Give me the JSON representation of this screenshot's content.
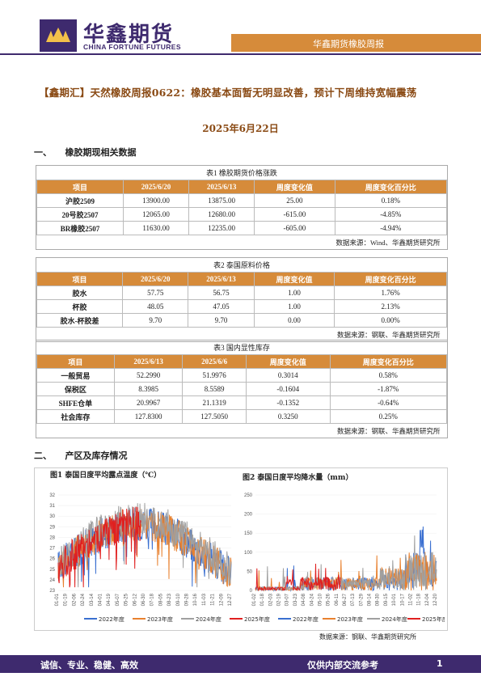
{
  "header": {
    "company_cn": "华鑫期货",
    "company_en": "CHINA FORTUNE FUTURES",
    "report_name": "华鑫期货橡胶周报"
  },
  "title": "【鑫期汇】天然橡胶周报0622：橡胶基本面暂无明显改善，预计下周维持宽幅震荡",
  "date": "2025年6月22日",
  "section1": "一、　　橡胶期现相关数据",
  "section2": "二、　　产区及库存情况",
  "table1": {
    "caption": "表1 橡胶期货价格涨跌",
    "headers": [
      "项目",
      "2025/6/20",
      "2025/6/13",
      "周度变化值",
      "周度变化百分比"
    ],
    "rows": [
      [
        "沪胶2509",
        "13900.00",
        "13875.00",
        "25.00",
        "0.18%"
      ],
      [
        "20号胶2507",
        "12065.00",
        "12680.00",
        "-615.00",
        "-4.85%"
      ],
      [
        "BR橡胶2507",
        "11630.00",
        "12235.00",
        "-605.00",
        "-4.94%"
      ]
    ],
    "source": "数据来源：Wind、华鑫期货研究所"
  },
  "table2": {
    "caption": "表2 泰国原料价格",
    "headers": [
      "项目",
      "2025/6/20",
      "2025/6/13",
      "周度变化值",
      "周度变化百分比"
    ],
    "rows": [
      [
        "胶水",
        "57.75",
        "56.75",
        "1.00",
        "1.76%"
      ],
      [
        "杯胶",
        "48.05",
        "47.05",
        "1.00",
        "2.13%"
      ],
      [
        "胶水-杯胶差",
        "9.70",
        "9.70",
        "0.00",
        "0.00%"
      ]
    ],
    "source": "数据来源：钢联、华鑫期货研究所"
  },
  "table3": {
    "caption": "表3 国内显性库存",
    "headers": [
      "项目",
      "2025/6/13",
      "2025/6/6",
      "周度变化值",
      "周度变化百分比"
    ],
    "rows": [
      [
        "一般贸易",
        "52.2990",
        "51.9976",
        "0.3014",
        "0.58%"
      ],
      [
        "保税区",
        "8.3985",
        "8.5589",
        "-0.1604",
        "-1.87%"
      ],
      [
        "SHFE仓单",
        "20.9967",
        "21.1319",
        "-0.1352",
        "-0.64%"
      ],
      [
        "社会库存",
        "127.8300",
        "127.5050",
        "0.3250",
        "0.25%"
      ]
    ],
    "source": "数据来源：钢联、华鑫期货研究所"
  },
  "figure1": {
    "caption": "图1 泰国日度平均露点温度（℃）",
    "y_ticks": [
      "32",
      "31",
      "30",
      "29",
      "28",
      "27",
      "26",
      "25",
      "24",
      "23"
    ],
    "x_ticks": [
      "01-01",
      "01-19",
      "02-06",
      "02-24",
      "03-14",
      "04-01",
      "04-19",
      "05-07",
      "05-25",
      "06-12",
      "06-30",
      "07-18",
      "08-05",
      "08-23",
      "09-10",
      "09-28",
      "10-16",
      "11-03",
      "11-21",
      "12-09",
      "12-27"
    ]
  },
  "figure2": {
    "caption": "图2 泰国日度平均降水量（mm）",
    "y_ticks": [
      "250",
      "200",
      "150",
      "100",
      "50",
      "0"
    ],
    "x_ticks": [
      "01-02",
      "01-18",
      "02-03",
      "02-19",
      "03-07",
      "03-23",
      "04-08",
      "04-24",
      "05-10",
      "05-26",
      "06-11",
      "06-27",
      "07-13",
      "07-29",
      "08-14",
      "08-30",
      "09-15",
      "10-01",
      "10-17",
      "11-02",
      "11-18",
      "12-04",
      "12-20"
    ]
  },
  "legend": [
    "2022年度",
    "2023年度",
    "2024年度",
    "2025年度"
  ],
  "series_colors": {
    "2022": "#3a6fd0",
    "2023": "#e8812f",
    "2024": "#a0a0a0",
    "2025": "#e02020"
  },
  "charts_source": "数据来源：钢联、华鑫期货研究所",
  "footer": {
    "left": "诚信、专业、稳健、高效",
    "right": "仅供内部交流参考",
    "page": "1"
  }
}
